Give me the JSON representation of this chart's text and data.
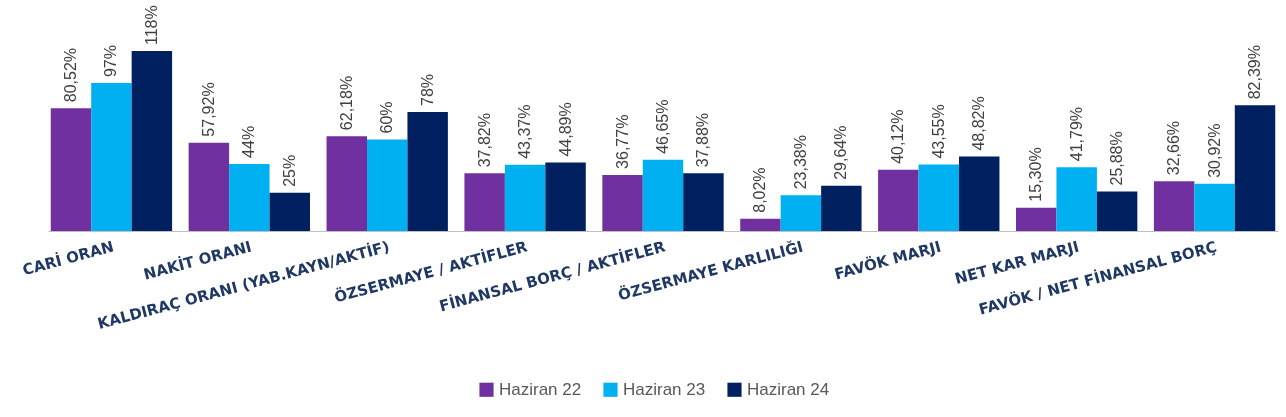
{
  "chart_data": {
    "type": "bar",
    "categories": [
      "CARİ ORAN",
      "NAKİT ORANI",
      "KALDIRAÇ ORANI (YAB.KAYN/AKTİF)",
      "ÖZSERMAYE / AKTİFLER",
      "FİNANSAL BORÇ / AKTİFLER",
      "ÖZSERMAYE KARLILIĞI",
      "FAVÖK MARJI",
      "NET KAR MARJI",
      "FAVÖK / NET FİNANSAL BORÇ"
    ],
    "series": [
      {
        "name": "Haziran 22",
        "color": "#7030a0",
        "values": [
          80.52,
          57.92,
          62.18,
          37.82,
          36.77,
          8.02,
          40.12,
          15.3,
          32.66
        ],
        "value_labels": [
          "80,52%",
          "57,92%",
          "62,18%",
          "37,82%",
          "36,77%",
          "8,02%",
          "40,12%",
          "15,30%",
          "32,66%"
        ]
      },
      {
        "name": "Haziran 23",
        "color": "#00b0f0",
        "values": [
          97,
          44,
          60,
          43.37,
          46.65,
          23.38,
          43.55,
          41.79,
          30.92
        ],
        "value_labels": [
          "97%",
          "44%",
          "60%",
          "43,37%",
          "46,65%",
          "23,38%",
          "43,55%",
          "41,79%",
          "30,92%"
        ]
      },
      {
        "name": "Haziran 24",
        "color": "#002060",
        "values": [
          118,
          25,
          78,
          44.89,
          37.88,
          29.64,
          48.82,
          25.88,
          82.39
        ],
        "value_labels": [
          "118%",
          "25%",
          "78%",
          "44,89%",
          "37,88%",
          "29,64%",
          "48,82%",
          "25,88%",
          "82,39%"
        ]
      }
    ],
    "legend": "bottom"
  }
}
